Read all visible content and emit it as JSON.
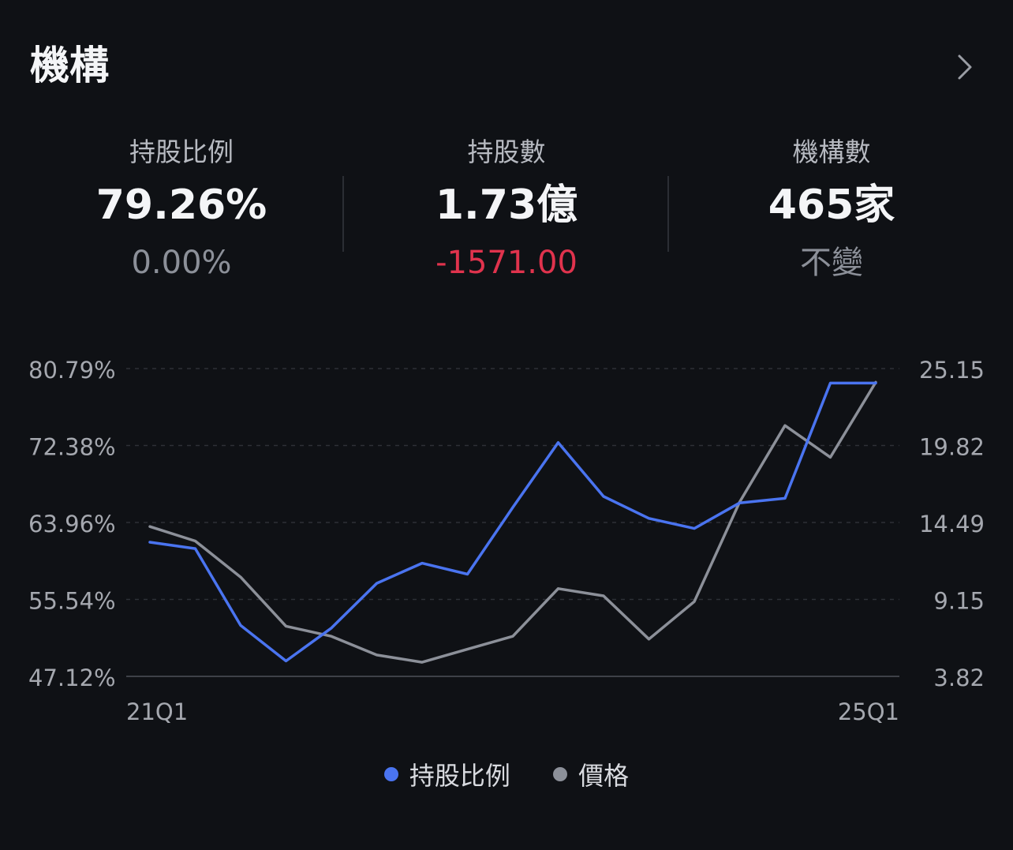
{
  "header": {
    "title": "機構"
  },
  "stats": [
    {
      "label": "持股比例",
      "value": "79.26%",
      "change": "0.00%",
      "tone": "neutral"
    },
    {
      "label": "持股數",
      "value": "1.73億",
      "change": "-1571.00",
      "tone": "negative"
    },
    {
      "label": "機構數",
      "value": "465家",
      "change": "不變",
      "tone": "neutral"
    }
  ],
  "colors": {
    "holding": "#4a74f0",
    "price": "#8c9099",
    "negative": "#e0334d",
    "grid": "#3a3d44"
  },
  "chart_data": {
    "type": "line",
    "x_start_label": "21Q1",
    "x_end_label": "25Q1",
    "y_left_ticks": [
      "80.79%",
      "72.38%",
      "63.96%",
      "55.54%",
      "47.12%"
    ],
    "y_right_ticks": [
      "25.15",
      "19.82",
      "14.49",
      "9.15",
      "3.82"
    ],
    "y_left_range": [
      47.12,
      80.79
    ],
    "y_right_range": [
      3.82,
      25.15
    ],
    "series": [
      {
        "name": "持股比例",
        "axis": "left",
        "values": [
          61.8,
          61.1,
          52.7,
          48.8,
          52.4,
          57.3,
          59.5,
          58.3,
          65.6,
          72.7,
          66.8,
          64.4,
          63.3,
          66.1,
          66.6,
          79.2,
          79.2
        ]
      },
      {
        "name": "價格",
        "axis": "right",
        "values": [
          14.2,
          13.2,
          10.7,
          7.3,
          6.6,
          5.3,
          4.8,
          5.7,
          6.6,
          9.9,
          9.4,
          6.4,
          9.0,
          15.9,
          21.2,
          19.0,
          24.2
        ]
      }
    ],
    "grid": true,
    "legend_position": "bottom-center"
  }
}
